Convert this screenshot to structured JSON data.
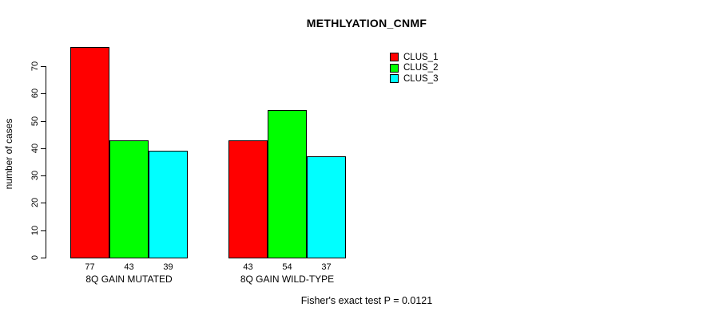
{
  "title": "METHLYATION_CNMF",
  "footer": "Fisher's exact test P = 0.0121",
  "y_axis": {
    "label": "number of cases",
    "ticks": [
      0,
      10,
      20,
      30,
      40,
      50,
      60,
      70
    ],
    "range": [
      0,
      70
    ]
  },
  "legend": {
    "position": "top-right-inside",
    "items": [
      {
        "label": "CLUS_1",
        "color": "#ff0000"
      },
      {
        "label": "CLUS_2",
        "color": "#00ff00"
      },
      {
        "label": "CLUS_3",
        "color": "#00ffff"
      }
    ]
  },
  "chart_data": {
    "type": "bar",
    "title": "METHLYATION_CNMF",
    "xlabel": "",
    "ylabel": "number of cases",
    "ylim": [
      0,
      70
    ],
    "grid": false,
    "categories": [
      "8Q GAIN MUTATED",
      "8Q GAIN WILD-TYPE"
    ],
    "series": [
      {
        "name": "CLUS_1",
        "color": "#ff0000",
        "values": [
          77,
          43
        ]
      },
      {
        "name": "CLUS_2",
        "color": "#00ff00",
        "values": [
          43,
          54
        ]
      },
      {
        "name": "CLUS_3",
        "color": "#00ffff",
        "values": [
          39,
          37
        ]
      }
    ],
    "bar_value_labels": [
      [
        "77",
        "43",
        "39"
      ],
      [
        "43",
        "54",
        "37"
      ]
    ],
    "annotation": "Fisher's exact test P = 0.0121"
  }
}
